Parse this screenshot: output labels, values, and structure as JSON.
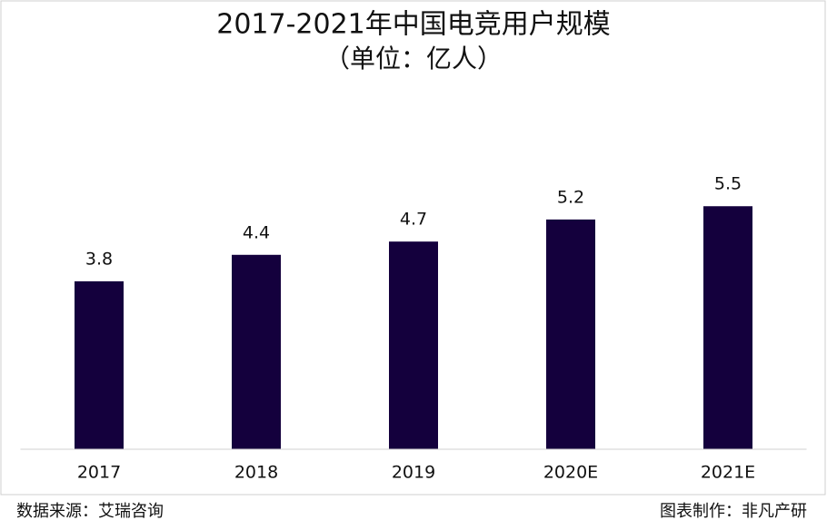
{
  "chart_data": {
    "type": "bar",
    "title": "2017-2021年中国电竞用户规模",
    "subtitle": "（单位：亿人）",
    "categories": [
      "2017",
      "2018",
      "2019",
      "2020E",
      "2021E"
    ],
    "values": [
      3.8,
      4.4,
      4.7,
      5.2,
      5.5
    ],
    "color": "#14003d",
    "ylim": [
      0,
      7.6
    ],
    "source": "数据来源：艾瑞咨询",
    "credit": "图表制作：非凡产研"
  }
}
